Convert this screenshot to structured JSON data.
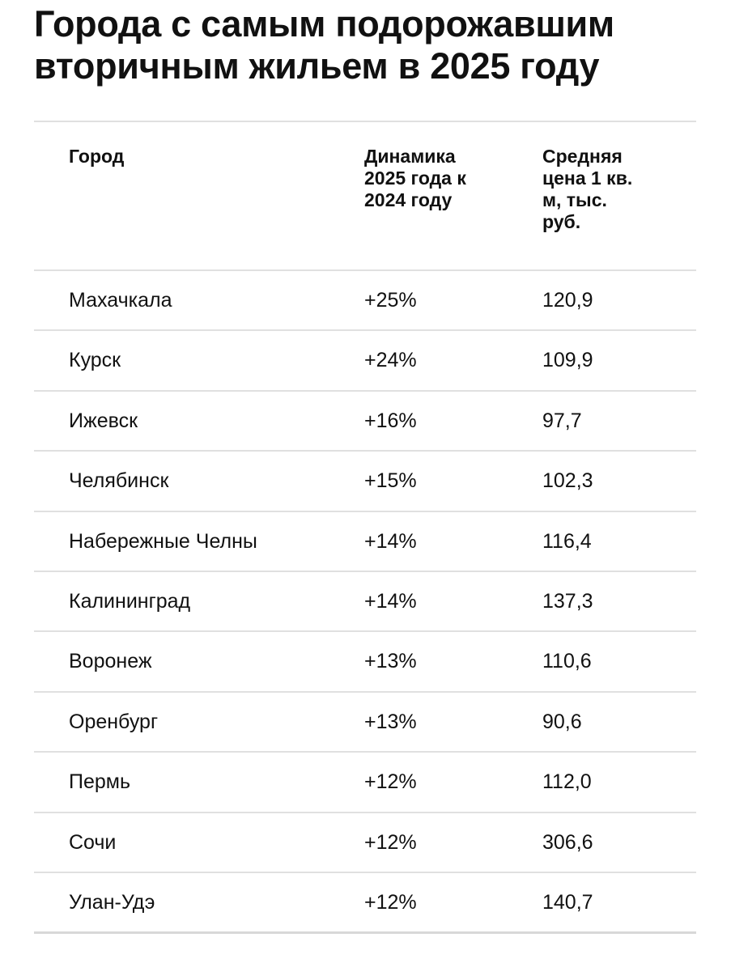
{
  "title": "Города с самым подорожавшим вторичным жильем в 2025 году",
  "table": {
    "header": [
      "Город",
      "Динамика 2025 года к 2024 году",
      "Средняя цена 1 кв. м, тыс. руб."
    ],
    "rows": [
      [
        "Махачкала",
        "+25%",
        "120,9"
      ],
      [
        "Курск",
        "+24%",
        "109,9"
      ],
      [
        "Ижевск",
        "+16%",
        "97,7"
      ],
      [
        "Челябинск",
        "+15%",
        "102,3"
      ],
      [
        "Набережные Челны",
        "+14%",
        "116,4"
      ],
      [
        "Калининград",
        "+14%",
        "137,3"
      ],
      [
        "Воронеж",
        "+13%",
        "110,6"
      ],
      [
        "Оренбург",
        "+13%",
        "90,6"
      ],
      [
        "Пермь",
        "+12%",
        "112,0"
      ],
      [
        "Сочи",
        "+12%",
        "306,6"
      ],
      [
        "Улан-Удэ",
        "+12%",
        "140,7"
      ]
    ]
  }
}
